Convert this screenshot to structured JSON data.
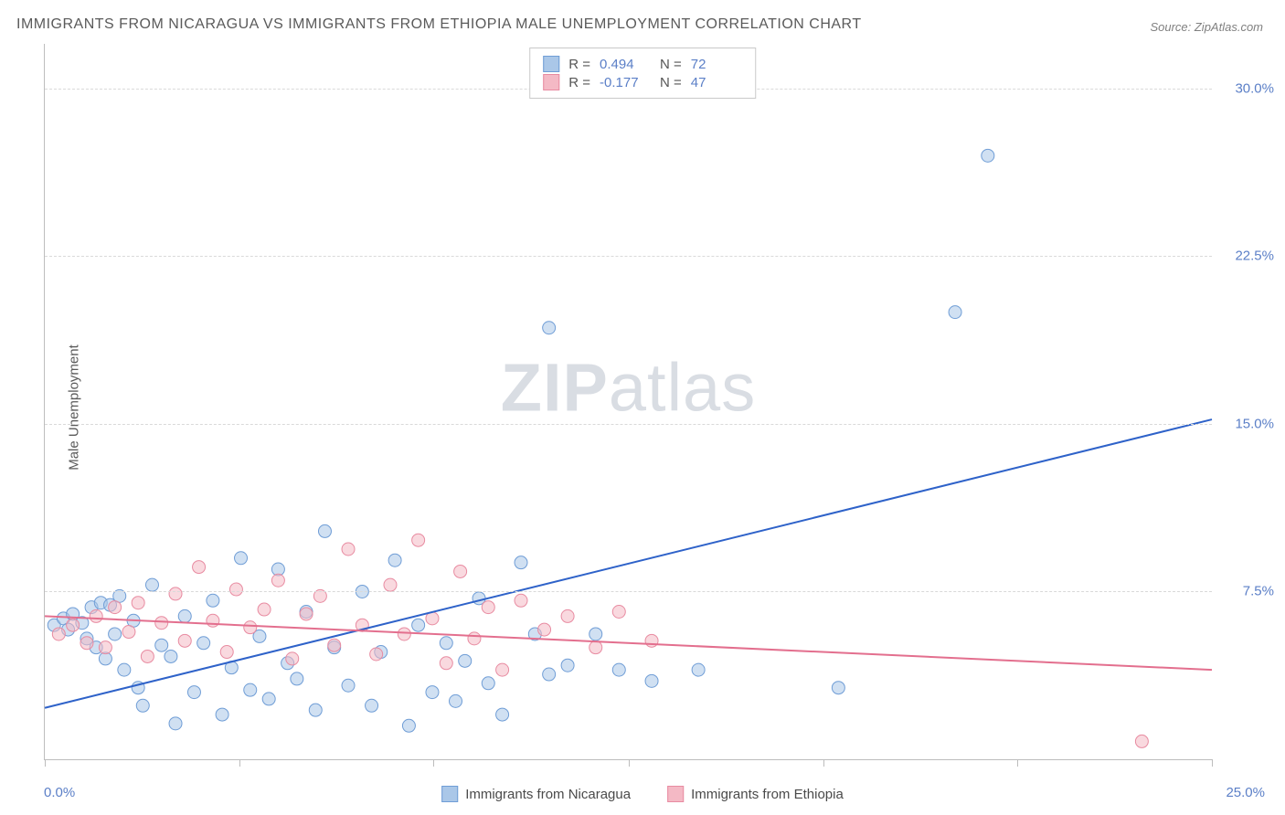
{
  "title": "IMMIGRANTS FROM NICARAGUA VS IMMIGRANTS FROM ETHIOPIA MALE UNEMPLOYMENT CORRELATION CHART",
  "source": "Source: ZipAtlas.com",
  "ylabel": "Male Unemployment",
  "watermark_bold": "ZIP",
  "watermark_rest": "atlas",
  "chart": {
    "type": "scatter",
    "background_color": "#ffffff",
    "grid_color": "#d9d9d9",
    "axis_color": "#bdbdbd",
    "text_color": "#5a5a5a",
    "tick_label_color": "#5b7fc7",
    "title_fontsize": 16,
    "label_fontsize": 15,
    "xlim": [
      0,
      25
    ],
    "ylim": [
      0,
      32
    ],
    "yticks": [
      7.5,
      15.0,
      22.5,
      30.0
    ],
    "ytick_labels": [
      "7.5%",
      "15.0%",
      "22.5%",
      "30.0%"
    ],
    "xtick_labels": {
      "min": "0.0%",
      "max": "25.0%"
    },
    "xticks_minor": [
      0,
      4.17,
      8.33,
      12.5,
      16.67,
      20.83,
      25
    ],
    "marker_radius": 7,
    "line_width": 2,
    "series": [
      {
        "name": "Immigrants from Nicaragua",
        "fill": "#aac7e8",
        "stroke": "#6f9dd6",
        "line_color": "#2e62c9",
        "r_label": "R =",
        "r_value": "0.494",
        "n_label": "N =",
        "n_value": "72",
        "trend": {
          "x1": 0,
          "y1": 2.3,
          "x2": 25,
          "y2": 15.2
        },
        "points": [
          [
            0.2,
            6.0
          ],
          [
            0.4,
            6.3
          ],
          [
            0.5,
            5.8
          ],
          [
            0.6,
            6.5
          ],
          [
            0.8,
            6.1
          ],
          [
            0.9,
            5.4
          ],
          [
            1.0,
            6.8
          ],
          [
            1.1,
            5.0
          ],
          [
            1.2,
            7.0
          ],
          [
            1.3,
            4.5
          ],
          [
            1.4,
            6.9
          ],
          [
            1.5,
            5.6
          ],
          [
            1.6,
            7.3
          ],
          [
            1.7,
            4.0
          ],
          [
            1.9,
            6.2
          ],
          [
            2.0,
            3.2
          ],
          [
            2.1,
            2.4
          ],
          [
            2.3,
            7.8
          ],
          [
            2.5,
            5.1
          ],
          [
            2.7,
            4.6
          ],
          [
            2.8,
            1.6
          ],
          [
            3.0,
            6.4
          ],
          [
            3.2,
            3.0
          ],
          [
            3.4,
            5.2
          ],
          [
            3.6,
            7.1
          ],
          [
            3.8,
            2.0
          ],
          [
            4.0,
            4.1
          ],
          [
            4.2,
            9.0
          ],
          [
            4.4,
            3.1
          ],
          [
            4.6,
            5.5
          ],
          [
            4.8,
            2.7
          ],
          [
            5.0,
            8.5
          ],
          [
            5.2,
            4.3
          ],
          [
            5.4,
            3.6
          ],
          [
            5.6,
            6.6
          ],
          [
            5.8,
            2.2
          ],
          [
            6.0,
            10.2
          ],
          [
            6.2,
            5.0
          ],
          [
            6.5,
            3.3
          ],
          [
            6.8,
            7.5
          ],
          [
            7.0,
            2.4
          ],
          [
            7.2,
            4.8
          ],
          [
            7.5,
            8.9
          ],
          [
            7.8,
            1.5
          ],
          [
            8.0,
            6.0
          ],
          [
            8.3,
            3.0
          ],
          [
            8.6,
            5.2
          ],
          [
            8.8,
            2.6
          ],
          [
            9.0,
            4.4
          ],
          [
            9.3,
            7.2
          ],
          [
            9.5,
            3.4
          ],
          [
            9.8,
            2.0
          ],
          [
            10.2,
            8.8
          ],
          [
            10.5,
            5.6
          ],
          [
            10.8,
            3.8
          ],
          [
            11.2,
            4.2
          ],
          [
            11.8,
            5.6
          ],
          [
            12.3,
            4.0
          ],
          [
            13.0,
            3.5
          ],
          [
            14.0,
            4.0
          ],
          [
            17.0,
            3.2
          ],
          [
            19.5,
            20.0
          ],
          [
            20.2,
            27.0
          ],
          [
            10.8,
            19.3
          ]
        ]
      },
      {
        "name": "Immigrants from Ethiopia",
        "fill": "#f4b9c5",
        "stroke": "#e88ba1",
        "line_color": "#e36f8e",
        "r_label": "R =",
        "r_value": "-0.177",
        "n_label": "N =",
        "n_value": "47",
        "trend": {
          "x1": 0,
          "y1": 6.4,
          "x2": 25,
          "y2": 4.0
        },
        "points": [
          [
            0.3,
            5.6
          ],
          [
            0.6,
            6.0
          ],
          [
            0.9,
            5.2
          ],
          [
            1.1,
            6.4
          ],
          [
            1.3,
            5.0
          ],
          [
            1.5,
            6.8
          ],
          [
            1.8,
            5.7
          ],
          [
            2.0,
            7.0
          ],
          [
            2.2,
            4.6
          ],
          [
            2.5,
            6.1
          ],
          [
            2.8,
            7.4
          ],
          [
            3.0,
            5.3
          ],
          [
            3.3,
            8.6
          ],
          [
            3.6,
            6.2
          ],
          [
            3.9,
            4.8
          ],
          [
            4.1,
            7.6
          ],
          [
            4.4,
            5.9
          ],
          [
            4.7,
            6.7
          ],
          [
            5.0,
            8.0
          ],
          [
            5.3,
            4.5
          ],
          [
            5.6,
            6.5
          ],
          [
            5.9,
            7.3
          ],
          [
            6.2,
            5.1
          ],
          [
            6.5,
            9.4
          ],
          [
            6.8,
            6.0
          ],
          [
            7.1,
            4.7
          ],
          [
            7.4,
            7.8
          ],
          [
            7.7,
            5.6
          ],
          [
            8.0,
            9.8
          ],
          [
            8.3,
            6.3
          ],
          [
            8.6,
            4.3
          ],
          [
            8.9,
            8.4
          ],
          [
            9.2,
            5.4
          ],
          [
            9.5,
            6.8
          ],
          [
            9.8,
            4.0
          ],
          [
            10.2,
            7.1
          ],
          [
            10.7,
            5.8
          ],
          [
            11.2,
            6.4
          ],
          [
            11.8,
            5.0
          ],
          [
            12.3,
            6.6
          ],
          [
            13.0,
            5.3
          ],
          [
            23.5,
            0.8
          ]
        ]
      }
    ]
  }
}
